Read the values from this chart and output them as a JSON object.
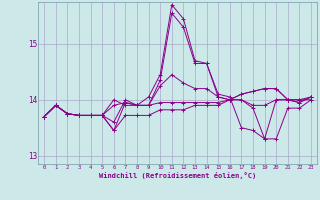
{
  "xlabel": "Windchill (Refroidissement éolien,°C)",
  "ylabel": "",
  "bg_color": "#cce8e8",
  "line_color": "#8b008b",
  "grid_color": "#aaaacc",
  "xlim": [
    -0.5,
    23.5
  ],
  "ylim": [
    12.85,
    15.75
  ],
  "yticks": [
    13,
    14,
    15
  ],
  "xticks": [
    0,
    1,
    2,
    3,
    4,
    5,
    6,
    7,
    8,
    9,
    10,
    11,
    12,
    13,
    14,
    15,
    16,
    17,
    18,
    19,
    20,
    21,
    22,
    23
  ],
  "series": [
    [
      13.7,
      13.9,
      13.75,
      13.72,
      13.72,
      13.72,
      13.9,
      13.95,
      13.9,
      13.9,
      14.35,
      15.55,
      15.3,
      14.65,
      14.65,
      14.05,
      14.0,
      14.0,
      13.9,
      13.9,
      14.0,
      14.0,
      14.0,
      14.0
    ],
    [
      13.7,
      13.9,
      13.75,
      13.72,
      13.72,
      13.72,
      13.45,
      13.95,
      13.9,
      13.9,
      13.95,
      13.95,
      13.95,
      13.95,
      13.95,
      13.95,
      14.0,
      14.1,
      14.15,
      14.2,
      14.2,
      14.0,
      13.95,
      14.05
    ],
    [
      13.7,
      13.9,
      13.75,
      13.72,
      13.72,
      13.72,
      13.45,
      13.72,
      13.72,
      13.72,
      13.82,
      13.82,
      13.82,
      13.9,
      13.9,
      13.9,
      14.0,
      14.1,
      14.15,
      14.2,
      14.2,
      14.0,
      13.95,
      14.05
    ],
    [
      13.7,
      13.9,
      13.75,
      13.72,
      13.72,
      13.72,
      14.0,
      13.9,
      13.9,
      14.05,
      14.45,
      15.7,
      15.45,
      14.7,
      14.65,
      14.1,
      14.05,
      13.5,
      13.45,
      13.3,
      13.3,
      13.85,
      13.85,
      14.0
    ],
    [
      13.7,
      13.9,
      13.75,
      13.72,
      13.72,
      13.72,
      13.6,
      14.0,
      13.9,
      13.9,
      14.25,
      14.45,
      14.3,
      14.2,
      14.2,
      14.05,
      14.0,
      14.0,
      13.85,
      13.3,
      14.0,
      14.0,
      14.0,
      14.05
    ]
  ]
}
